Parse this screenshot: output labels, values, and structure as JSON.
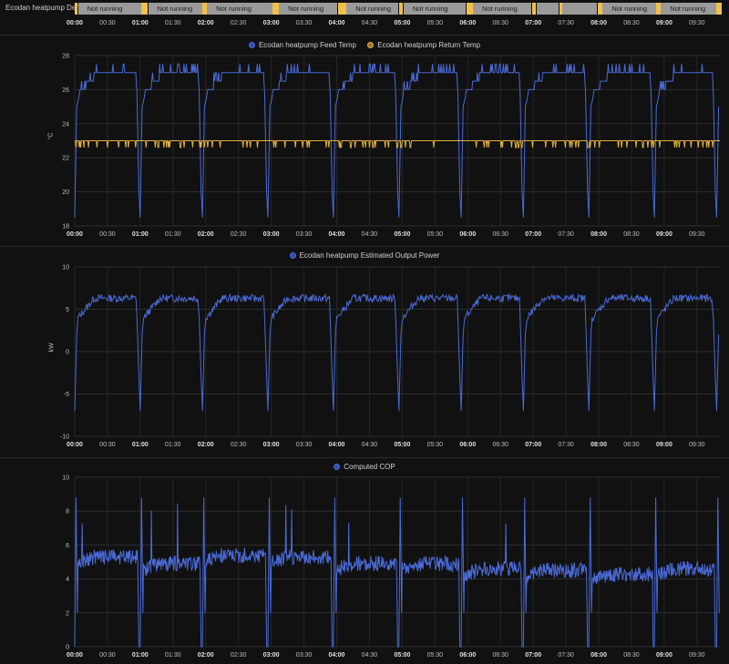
{
  "timeline": {
    "label": "Ecodan heatpump Defrost",
    "segment_text": "Not running",
    "running_color": "#f0c04a",
    "not_running_color": "#9a9a9a",
    "running_spans": [
      [
        0,
        0.05
      ],
      [
        1.02,
        1.12
      ],
      [
        1.95,
        2.02
      ],
      [
        3.02,
        3.12
      ],
      [
        4.02,
        4.15
      ],
      [
        4.95,
        5.02
      ],
      [
        5.98,
        6.08
      ],
      [
        6.98,
        7.05
      ],
      [
        7.4,
        7.45
      ],
      [
        7.98,
        8.06
      ],
      [
        8.88,
        8.95
      ],
      [
        9.8,
        9.88
      ]
    ],
    "ticks": [
      "00:00",
      "00:30",
      "01:00",
      "01:30",
      "02:00",
      "02:30",
      "03:00",
      "03:30",
      "04:00",
      "04:30",
      "05:00",
      "05:30",
      "06:00",
      "06:30",
      "07:00",
      "07:30",
      "08:00",
      "08:30",
      "09:00",
      "09:30"
    ]
  },
  "chart_data": [
    {
      "type": "line",
      "ylabel": "°C",
      "ylim": [
        18,
        28
      ],
      "yticks": [
        "18",
        "20",
        "22",
        "24",
        "26",
        "28"
      ],
      "xlim": [
        0,
        9.85
      ],
      "xticks": [
        "00:00",
        "00:30",
        "01:00",
        "01:30",
        "02:00",
        "02:30",
        "03:00",
        "03:30",
        "04:00",
        "04:30",
        "05:00",
        "05:30",
        "06:00",
        "06:30",
        "07:00",
        "07:30",
        "08:00",
        "08:30",
        "09:00",
        "09:30"
      ],
      "grid": true,
      "legend": "top-center",
      "series": [
        {
          "name": "Ecodan heatpump Feed Temp",
          "color": "#4a6ad8",
          "kind": "feed",
          "cycles": [
            0.0,
            1.0,
            1.95,
            2.95,
            3.95,
            4.95,
            5.9,
            6.85,
            7.85,
            8.85,
            9.8
          ],
          "base": 27.0,
          "dip": 18.5,
          "start": 26.5
        },
        {
          "name": "Ecodan heatpump Return Temp",
          "color": "#e0b03e",
          "kind": "return",
          "high": 23.0,
          "low": 22.6
        }
      ]
    },
    {
      "type": "line",
      "ylabel": "kW",
      "ylim": [
        -10,
        10
      ],
      "yticks": [
        "-10",
        "-5",
        "0",
        "5",
        "10"
      ],
      "xlim": [
        0,
        9.85
      ],
      "xticks": [
        "00:00",
        "00:30",
        "01:00",
        "01:30",
        "02:00",
        "02:30",
        "03:00",
        "03:30",
        "04:00",
        "04:30",
        "05:00",
        "05:30",
        "06:00",
        "06:30",
        "07:00",
        "07:30",
        "08:00",
        "08:30",
        "09:00",
        "09:30"
      ],
      "grid": true,
      "legend": "top-center",
      "series": [
        {
          "name": "Ecodan heatpump Estimated Output Power",
          "color": "#4a6ad8",
          "kind": "power",
          "cycles": [
            0.0,
            1.0,
            1.95,
            2.95,
            3.95,
            4.95,
            5.9,
            6.85,
            7.85,
            8.85,
            9.8
          ],
          "base": 6.3,
          "dip": -7.0,
          "start": 5.5
        }
      ]
    },
    {
      "type": "line",
      "ylabel": "",
      "ylim": [
        0,
        10
      ],
      "yticks": [
        "0",
        "2",
        "4",
        "6",
        "8",
        "10"
      ],
      "xlim": [
        0,
        9.85
      ],
      "xticks": [
        "00:00",
        "00:30",
        "01:00",
        "01:30",
        "02:00",
        "02:30",
        "03:00",
        "03:30",
        "04:00",
        "04:30",
        "05:00",
        "05:30",
        "06:00",
        "06:30",
        "07:00",
        "07:30",
        "08:00",
        "08:30",
        "09:00",
        "09:30"
      ],
      "grid": true,
      "legend": "top-center",
      "series": [
        {
          "name": "Computed COP",
          "color": "#4a6ad8",
          "kind": "cop",
          "cycles": [
            0.0,
            1.0,
            1.95,
            2.95,
            3.95,
            4.95,
            5.9,
            6.85,
            7.85,
            8.85,
            9.8
          ],
          "levels": [
            5.3,
            4.9,
            5.4,
            5.3,
            4.9,
            4.9,
            4.6,
            4.5,
            4.3,
            4.6,
            4.3
          ],
          "spike": 8.8
        }
      ]
    }
  ]
}
